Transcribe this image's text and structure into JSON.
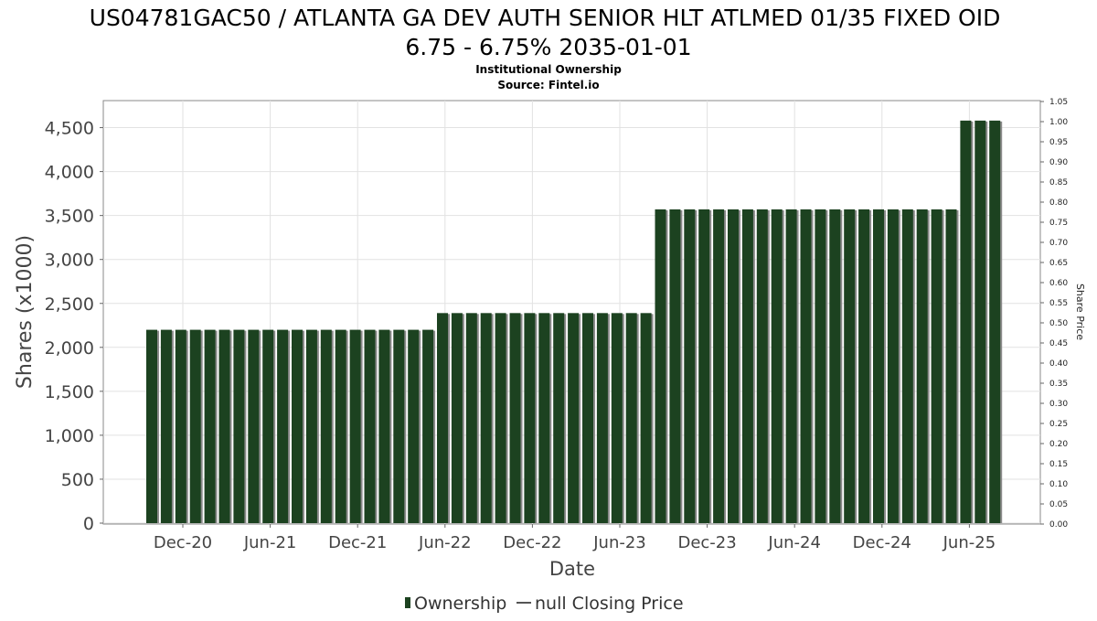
{
  "chart_data": {
    "type": "bar",
    "title_lines": [
      "US04781GAC50 / ATLANTA GA DEV AUTH SENIOR HLT ATLMED 01/35 FIXED OID",
      "6.75 - 6.75% 2035-01-01"
    ],
    "subtitle_lines": [
      "Institutional Ownership",
      "Source: Fintel.io"
    ],
    "xlabel": "Date",
    "ylabel": "Shares (x1000)",
    "y2label": "Share Price",
    "ylim": [
      0,
      4800
    ],
    "y_ticks": [
      0,
      500,
      1000,
      1500,
      2000,
      2500,
      3000,
      3500,
      4000,
      4500
    ],
    "y_tick_labels": [
      "0",
      "500",
      "1,000",
      "1,500",
      "2,000",
      "2,500",
      "3,000",
      "3,500",
      "4,000",
      "4,500"
    ],
    "y2lim": [
      0,
      1.05
    ],
    "y2_ticks": [
      0,
      0.05,
      0.1,
      0.15,
      0.2,
      0.25,
      0.3,
      0.35,
      0.4,
      0.45,
      0.5,
      0.55,
      0.6,
      0.65,
      0.7,
      0.75,
      0.8,
      0.85,
      0.9,
      0.95,
      1.0,
      1.05
    ],
    "y2_tick_labels": [
      "0.00",
      "0.05",
      "0.10",
      "0.15",
      "0.20",
      "0.25",
      "0.30",
      "0.35",
      "0.40",
      "0.45",
      "0.50",
      "0.55",
      "0.60",
      "0.65",
      "0.70",
      "0.75",
      "0.80",
      "0.85",
      "0.90",
      "0.95",
      "1.00",
      "1.05"
    ],
    "x_tick_labels": [
      "Dec-20",
      "Jun-21",
      "Dec-21",
      "Jun-22",
      "Dec-22",
      "Jun-23",
      "Dec-23",
      "Jun-24",
      "Dec-24",
      "Jun-25"
    ],
    "grid": true,
    "legend_position": "bottom",
    "series": [
      {
        "name": "Ownership",
        "color": "#1c4220",
        "values": [
          2200,
          2200,
          2200,
          2200,
          2200,
          2200,
          2200,
          2200,
          2200,
          2200,
          2200,
          2200,
          2200,
          2200,
          2200,
          2200,
          2200,
          2200,
          2200,
          2200,
          2390,
          2390,
          2390,
          2390,
          2390,
          2390,
          2390,
          2390,
          2390,
          2390,
          2390,
          2390,
          2390,
          2390,
          2390,
          3570,
          3570,
          3570,
          3570,
          3570,
          3570,
          3570,
          3570,
          3570,
          3570,
          3570,
          3570,
          3570,
          3570,
          3570,
          3570,
          3570,
          3570,
          3570,
          3570,
          3570,
          4580,
          4580,
          4580
        ]
      }
    ],
    "legend": [
      {
        "label": "Ownership",
        "color": "#1c4220"
      },
      {
        "label": "null Closing Price",
        "color": "#555555"
      }
    ]
  }
}
